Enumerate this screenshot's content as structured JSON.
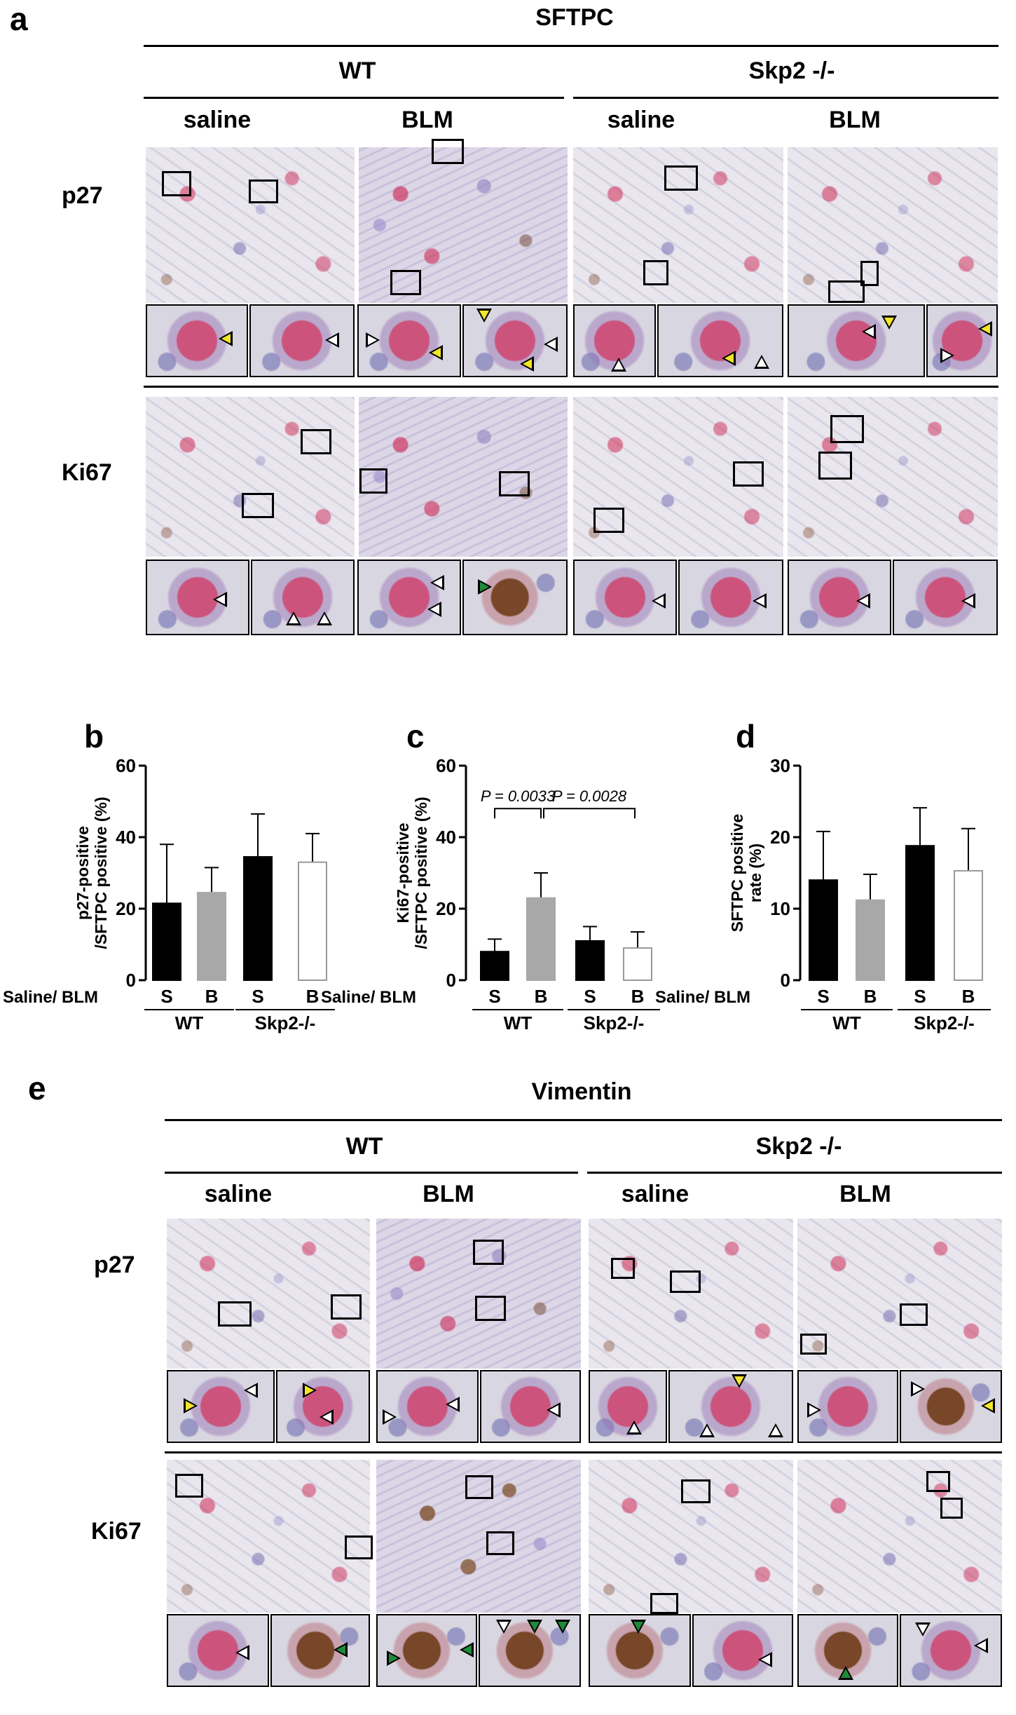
{
  "colors": {
    "black_bar": "#000000",
    "gray_bar": "#a8a8a8",
    "white_bar": "#ffffff",
    "white_arrow": "#ffffff",
    "yellow_arrow": "#f2e62a",
    "green_arrow": "#1f8a3a"
  },
  "panel_a": {
    "letter": "a",
    "title": "SFTPC",
    "groups": [
      "WT",
      "Skp2 -/-"
    ],
    "conditions": [
      "saline",
      "BLM",
      "saline",
      "BLM"
    ],
    "rows": [
      "p27",
      "Ki67"
    ]
  },
  "panel_e": {
    "letter": "e",
    "title": "Vimentin",
    "groups": [
      "WT",
      "Skp2 -/-"
    ],
    "conditions": [
      "saline",
      "BLM",
      "saline",
      "BLM"
    ],
    "rows": [
      "p27",
      "Ki67"
    ]
  },
  "x_axis": {
    "row_label": "Saline/ BLM",
    "ticks": [
      "S",
      "B",
      "S",
      "B"
    ],
    "groups": [
      "WT",
      "Skp2-/-"
    ]
  },
  "chart_data": [
    {
      "panel": "b",
      "type": "bar",
      "ylabel": "p27-positive /SFTPC positive (%)",
      "ylim": [
        0,
        60
      ],
      "yticks": [
        0,
        20,
        40,
        60
      ],
      "categories": [
        "S",
        "B",
        "S",
        "B"
      ],
      "groups": [
        "WT",
        "Skp2-/-"
      ],
      "values": [
        21.5,
        24.5,
        34.5,
        33
      ],
      "errors": [
        16.5,
        7,
        12,
        8
      ],
      "fills": [
        "black",
        "gray",
        "black",
        "white"
      ]
    },
    {
      "panel": "c",
      "type": "bar",
      "ylabel": "Ki67-positive /SFTPC positive (%)",
      "ylim": [
        0,
        60
      ],
      "yticks": [
        0,
        20,
        40,
        60
      ],
      "categories": [
        "S",
        "B",
        "S",
        "B"
      ],
      "groups": [
        "WT",
        "Skp2-/-"
      ],
      "values": [
        8,
        23,
        11,
        9
      ],
      "errors": [
        3.5,
        7,
        4,
        4.5
      ],
      "fills": [
        "black",
        "gray",
        "black",
        "white"
      ],
      "annotations": [
        {
          "text": "P = 0.0033",
          "between": [
            0,
            1
          ]
        },
        {
          "text": "P = 0.0028",
          "between": [
            1,
            3
          ]
        }
      ]
    },
    {
      "panel": "d",
      "type": "bar",
      "ylabel": "SFTPC positive rate (%)",
      "ylim": [
        0,
        30
      ],
      "yticks": [
        0,
        10,
        20,
        30
      ],
      "categories": [
        "S",
        "B",
        "S",
        "B"
      ],
      "groups": [
        "WT",
        "Skp2-/-"
      ],
      "values": [
        14,
        11.2,
        18.8,
        15.3
      ],
      "errors": [
        6.8,
        3.6,
        5.3,
        5.9
      ],
      "fills": [
        "black",
        "gray",
        "black",
        "white"
      ]
    }
  ]
}
